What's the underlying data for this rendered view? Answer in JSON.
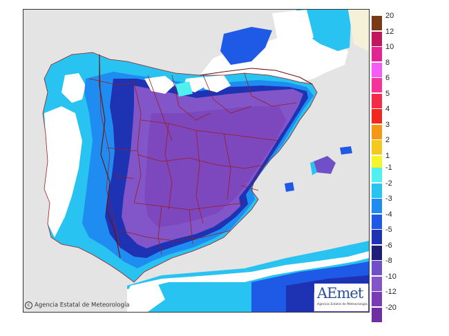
{
  "credit": {
    "text": "Agencia Estatal de Meteorología",
    "icon": "copyright-icon"
  },
  "logo": {
    "name": "AEmet",
    "subtitle": "Agencia Estatal de Meteorología"
  },
  "legend": {
    "warm": [
      {
        "label": "20",
        "color": "#7a3a14"
      },
      {
        "label": "12",
        "color": "#c0175e"
      },
      {
        "label": "10",
        "color": "#e22592"
      },
      {
        "label": "8",
        "color": "#f55cf5"
      },
      {
        "label": "6",
        "color": "#f5339b"
      },
      {
        "label": "5",
        "color": "#f52a4a"
      },
      {
        "label": "4",
        "color": "#f0281e"
      },
      {
        "label": "3",
        "color": "#f59614"
      },
      {
        "label": "2",
        "color": "#f5c81e"
      },
      {
        "label": "1",
        "color": "#f5f528"
      }
    ],
    "cold": [
      {
        "label": "-1",
        "color": "#50f0f0"
      },
      {
        "label": "-2",
        "color": "#28c3f0"
      },
      {
        "label": "-3",
        "color": "#1e8cf0"
      },
      {
        "label": "-4",
        "color": "#1e5ae6"
      },
      {
        "label": "-5",
        "color": "#1e32b4"
      },
      {
        "label": "-6",
        "color": "#1e1e78"
      },
      {
        "label": "-8",
        "color": "#7050c8"
      },
      {
        "label": "-10",
        "color": "#8255c8"
      },
      {
        "label": "-12",
        "color": "#7a3cb4"
      },
      {
        "label": "-20",
        "color": "#6e2fa0"
      }
    ]
  }
}
